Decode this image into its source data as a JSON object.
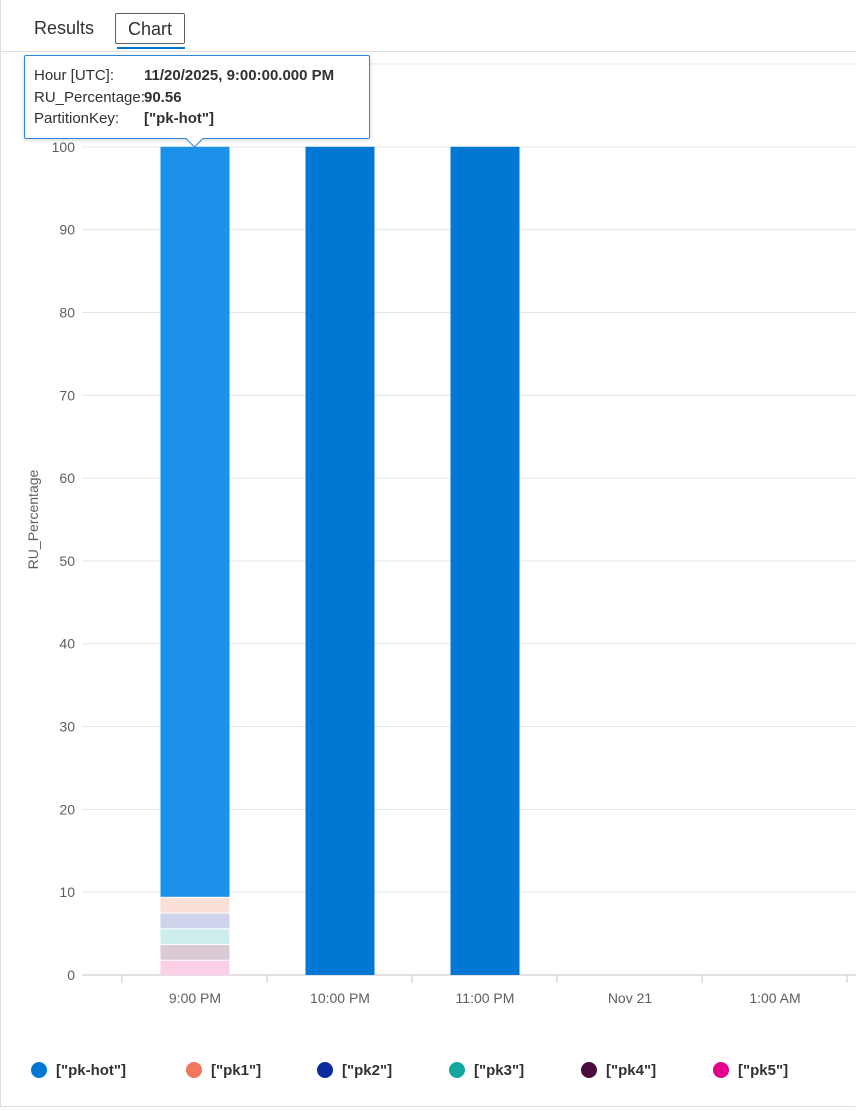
{
  "tabs": [
    {
      "label": "Results"
    },
    {
      "label": "Chart"
    }
  ],
  "tooltip": {
    "rows": [
      {
        "key": "Hour [UTC]:",
        "value": "11/20/2025, 9:00:00.000 PM"
      },
      {
        "key": "RU_Percentage:",
        "value": "90.56"
      },
      {
        "key": "PartitionKey:",
        "value": "[\"pk-hot\"]"
      }
    ]
  },
  "chart_data": {
    "type": "bar",
    "stacked": true,
    "ylabel": "RU_Percentage",
    "xlabel": "",
    "ylim": [
      0,
      110
    ],
    "yticks": [
      0,
      10,
      20,
      30,
      40,
      50,
      60,
      70,
      80,
      90,
      100,
      110
    ],
    "categories": [
      "9:00 PM",
      "10:00 PM",
      "11:00 PM",
      "Nov 21",
      "1:00 AM"
    ],
    "grid": true,
    "legend_position": "bottom",
    "series": [
      {
        "name": "[\"pk-hot\"]",
        "color": "#0078d4",
        "values": [
          90.56,
          100,
          100,
          null,
          null
        ]
      },
      {
        "name": "[\"pk1\"]",
        "color": "#f1765e",
        "values": [
          1.9,
          null,
          null,
          null,
          null
        ]
      },
      {
        "name": "[\"pk2\"]",
        "color": "#0b2b9e",
        "values": [
          1.9,
          null,
          null,
          null,
          null
        ]
      },
      {
        "name": "[\"pk3\"]",
        "color": "#13a89e",
        "values": [
          1.9,
          null,
          null,
          null,
          null
        ]
      },
      {
        "name": "[\"pk4\"]",
        "color": "#4b0c3e",
        "values": [
          1.9,
          null,
          null,
          null,
          null
        ]
      },
      {
        "name": "[\"pk5\"]",
        "color": "#e3008c",
        "values": [
          1.84,
          null,
          null,
          null,
          null
        ]
      }
    ],
    "highlighted_category": "9:00 PM"
  }
}
